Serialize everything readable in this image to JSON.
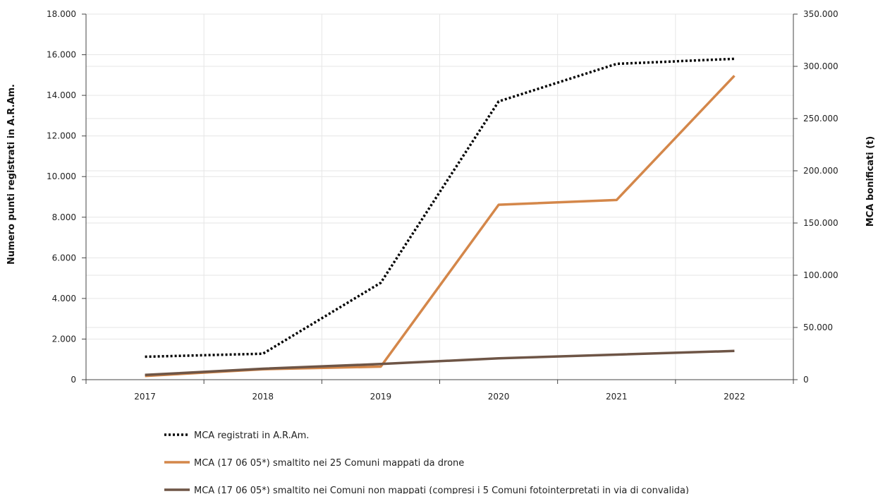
{
  "chart_data": {
    "type": "line",
    "categories": [
      "2017",
      "2018",
      "2019",
      "2020",
      "2021",
      "2022"
    ],
    "y_left": {
      "label": "Numero punti registrati in A.R.Am.",
      "min": 0,
      "max": 18000,
      "step": 2000,
      "tick_labels": [
        "0",
        "2.000",
        "4.000",
        "6.000",
        "8.000",
        "10.000",
        "12.000",
        "14.000",
        "16.000",
        "18.000"
      ]
    },
    "y_right": {
      "label": "MCA bonificati (t)",
      "min": 0,
      "max": 350000,
      "step": 50000,
      "tick_labels": [
        "0",
        "50.000",
        "100.000",
        "150.000",
        "200.000",
        "250.000",
        "300.000",
        "350.000"
      ]
    },
    "series": [
      {
        "name": "MCA registrati in A.R.Am.",
        "axis": "left",
        "style": "dotted",
        "color": "#000000",
        "values": [
          1130,
          1280,
          4770,
          13700,
          15550,
          15800
        ]
      },
      {
        "name": "MCA (17 06 05*) smaltito nei 25 Comuni mappati da drone",
        "axis": "right",
        "style": "solid",
        "color": "#d4874a",
        "values": [
          3500,
          10000,
          12500,
          167500,
          172000,
          291000
        ]
      },
      {
        "name": "MCA (17 06 05*) smaltito nei Comuni non mappati (compresi i 5 Comuni fotointerpretati in via di convalida)",
        "axis": "right",
        "style": "solid",
        "color": "#6e5546",
        "values": [
          4500,
          10500,
          15000,
          20500,
          24000,
          27500
        ]
      }
    ],
    "grid": true,
    "legend_position": "bottom"
  }
}
